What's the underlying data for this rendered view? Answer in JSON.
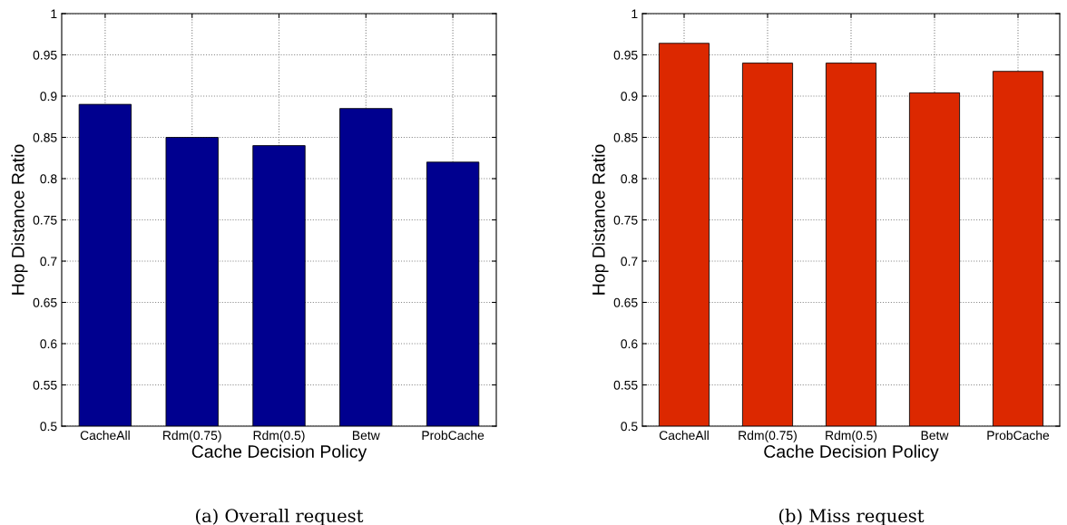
{
  "chart_data": [
    {
      "type": "bar",
      "categories": [
        "CacheAll",
        "Rdm(0.75)",
        "Rdm(0.5)",
        "Betw",
        "ProbCache"
      ],
      "values": [
        0.89,
        0.85,
        0.84,
        0.885,
        0.82
      ],
      "color": "#00008f",
      "xlabel": "Cache Decision Policy",
      "ylabel": "Hop Distance Ratio",
      "ylim": [
        0.5,
        1
      ],
      "yticks": [
        0.5,
        0.55,
        0.6,
        0.65,
        0.7,
        0.75,
        0.8,
        0.85,
        0.9,
        0.95,
        1
      ],
      "grid": true,
      "annotations": [
        "(a) Overall request"
      ]
    },
    {
      "type": "bar",
      "categories": [
        "CacheAll",
        "Rdm(0.75)",
        "Rdm(0.5)",
        "Betw",
        "ProbCache"
      ],
      "values": [
        0.964,
        0.94,
        0.94,
        0.904,
        0.93
      ],
      "color": "#dc2800",
      "xlabel": "Cache Decision Policy",
      "ylabel": "Hop Distance Ratio",
      "ylim": [
        0.5,
        1
      ],
      "yticks": [
        0.5,
        0.55,
        0.6,
        0.65,
        0.7,
        0.75,
        0.8,
        0.85,
        0.9,
        0.95,
        1
      ],
      "grid": true,
      "annotations": [
        "(b) Miss request"
      ]
    }
  ]
}
